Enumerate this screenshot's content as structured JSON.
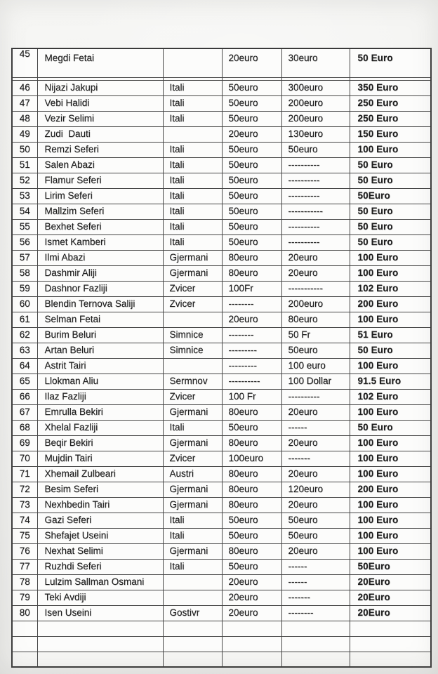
{
  "colors": {
    "paper": "#f2f2f0",
    "ink": "#1d1d1d",
    "table_border": "#464646",
    "cell_background": "#fcfcfb"
  },
  "table": {
    "column_keys": [
      "num",
      "name",
      "country",
      "sum1",
      "sum2",
      "total"
    ],
    "rows": [
      {
        "num": "45",
        "name": "Megdi Fetai",
        "country": "",
        "sum1": "20euro",
        "sum2": "30euro",
        "total": "50 Euro",
        "tall": true
      },
      {
        "num": "46",
        "name": "Nijazi Jakupi",
        "country": "Itali",
        "sum1": "50euro",
        "sum2": "300euro",
        "total": "350 Euro"
      },
      {
        "num": "47",
        "name": "Vebi Halidi",
        "country": "Itali",
        "sum1": "50euro",
        "sum2": "200euro",
        "total": "250 Euro"
      },
      {
        "num": "48",
        "name": "Vezir Selimi",
        "country": "Itali",
        "sum1": "50euro",
        "sum2": "200euro",
        "total": "250 Euro"
      },
      {
        "num": "49",
        "name": "Zudi  Dauti",
        "country": "",
        "sum1": "20euro",
        "sum2": "130euro",
        "total": "150 Euro"
      },
      {
        "num": "50",
        "name": "Remzi Seferi",
        "country": "Itali",
        "sum1": "50euro",
        "sum2": "50euro",
        "total": "100 Euro"
      },
      {
        "num": "51",
        "name": "Salen Abazi",
        "country": "Itali",
        "sum1": "50euro",
        "sum2": "----------",
        "total": "50 Euro"
      },
      {
        "num": "52",
        "name": "Flamur Seferi",
        "country": "Itali",
        "sum1": "50euro",
        "sum2": "----------",
        "total": "50 Euro"
      },
      {
        "num": "53",
        "name": "Lirim Seferi",
        "country": "Itali",
        "sum1": "50euro",
        "sum2": "----------",
        "total": "50Euro"
      },
      {
        "num": "54",
        "name": "Mallzim Seferi",
        "country": "Itali",
        "sum1": "50euro",
        "sum2": "-----------",
        "total": "50 Euro"
      },
      {
        "num": "55",
        "name": "Bexhet Seferi",
        "country": "Itali",
        "sum1": "50euro",
        "sum2": "----------",
        "total": "50 Euro"
      },
      {
        "num": "56",
        "name": "Ismet Kamberi",
        "country": "Itali",
        "sum1": "50euro",
        "sum2": "----------",
        "total": "50 Euro"
      },
      {
        "num": "57",
        "name": "Ilmi Abazi",
        "country": "Gjermani",
        "sum1": "80euro",
        "sum2": "20euro",
        "total": "100 Euro"
      },
      {
        "num": "58",
        "name": "Dashmir Aliji",
        "country": "Gjermani",
        "sum1": "80euro",
        "sum2": "20euro",
        "total": "100 Euro"
      },
      {
        "num": "59",
        "name": "Dashnor Fazliji",
        "country": "Zvicer",
        "sum1": "100Fr",
        "sum2": "-----------",
        "total": "102 Euro"
      },
      {
        "num": "60",
        "name": "Blendin Ternova Saliji",
        "country": "Zvicer",
        "sum1": "--------",
        "sum2": "200euro",
        "total": "200 Euro"
      },
      {
        "num": "61",
        "name": "Selman Fetai",
        "country": "",
        "sum1": "20euro",
        "sum2": "80euro",
        "total": "100 Euro"
      },
      {
        "num": "62",
        "name": "Burim Beluri",
        "country": "Simnice",
        "sum1": "--------",
        "sum2": "50 Fr",
        "total": "51 Euro"
      },
      {
        "num": "63",
        "name": "Artan Beluri",
        "country": "Simnice",
        "sum1": "---------",
        "sum2": "50euro",
        "total": "50 Euro"
      },
      {
        "num": "64",
        "name": "Astrit Tairi",
        "country": "",
        "sum1": "---------",
        "sum2": "100 euro",
        "total": "100 Euro"
      },
      {
        "num": "65",
        "name": "Llokman Aliu",
        "country": "Sermnov",
        "sum1": "----------",
        "sum2": "100 Dollar",
        "total": "91.5 Euro"
      },
      {
        "num": "66",
        "name": "Ilaz Fazliji",
        "country": "Zvicer",
        "sum1": "100 Fr",
        "sum2": "----------",
        "total": "102 Euro"
      },
      {
        "num": "67",
        "name": "Emrulla Bekiri",
        "country": "Gjermani",
        "sum1": "80euro",
        "sum2": "20euro",
        "total": "100 Euro"
      },
      {
        "num": "68",
        "name": "Xhelal Fazliji",
        "country": "Itali",
        "sum1": "50euro",
        "sum2": "------",
        "total": "50 Euro"
      },
      {
        "num": "69",
        "name": "Beqir Bekiri",
        "country": "Gjermani",
        "sum1": "80euro",
        "sum2": "20euro",
        "total": "100 Euro"
      },
      {
        "num": "70",
        "name": "Mujdin Tairi",
        "country": "Zvicer",
        "sum1": "100euro",
        "sum2": "-------",
        "total": "100 Euro"
      },
      {
        "num": "71",
        "name": "Xhemail Zulbeari",
        "country": "Austri",
        "sum1": "80euro",
        "sum2": "20euro",
        "total": "100 Euro"
      },
      {
        "num": "72",
        "name": "Besim Seferi",
        "country": "Gjermani",
        "sum1": "80euro",
        "sum2": "120euro",
        "total": "200 Euro"
      },
      {
        "num": "73",
        "name": "Nexhbedin Tairi",
        "country": "Gjermani",
        "sum1": "80euro",
        "sum2": "20euro",
        "total": "100 Euro"
      },
      {
        "num": "74",
        "name": "Gazi Seferi",
        "country": "Itali",
        "sum1": "50euro",
        "sum2": "50euro",
        "total": "100 Euro"
      },
      {
        "num": "75",
        "name": "Shefajet Useini",
        "country": "Itali",
        "sum1": "50euro",
        "sum2": "50euro",
        "total": "100 Euro"
      },
      {
        "num": "76",
        "name": "Nexhat Selimi",
        "country": "Gjermani",
        "sum1": "80euro",
        "sum2": "20euro",
        "total": "100 Euro"
      },
      {
        "num": "77",
        "name": "Ruzhdi Seferi",
        "country": "Itali",
        "sum1": "50euro",
        "sum2": "------",
        "total": "50Euro"
      },
      {
        "num": "78",
        "name": "Lulzim Sallman Osmani",
        "country": "",
        "sum1": "20euro",
        "sum2": "------",
        "total": "20Euro"
      },
      {
        "num": "79",
        "name": "Teki Avdiji",
        "country": "",
        "sum1": "20euro",
        "sum2": "-------",
        "total": "20Euro"
      },
      {
        "num": "80",
        "name": "Isen Useini",
        "country": "Gostivr",
        "sum1": "20euro",
        "sum2": "--------",
        "total": "20Euro"
      }
    ],
    "empty_row_count": 3
  }
}
